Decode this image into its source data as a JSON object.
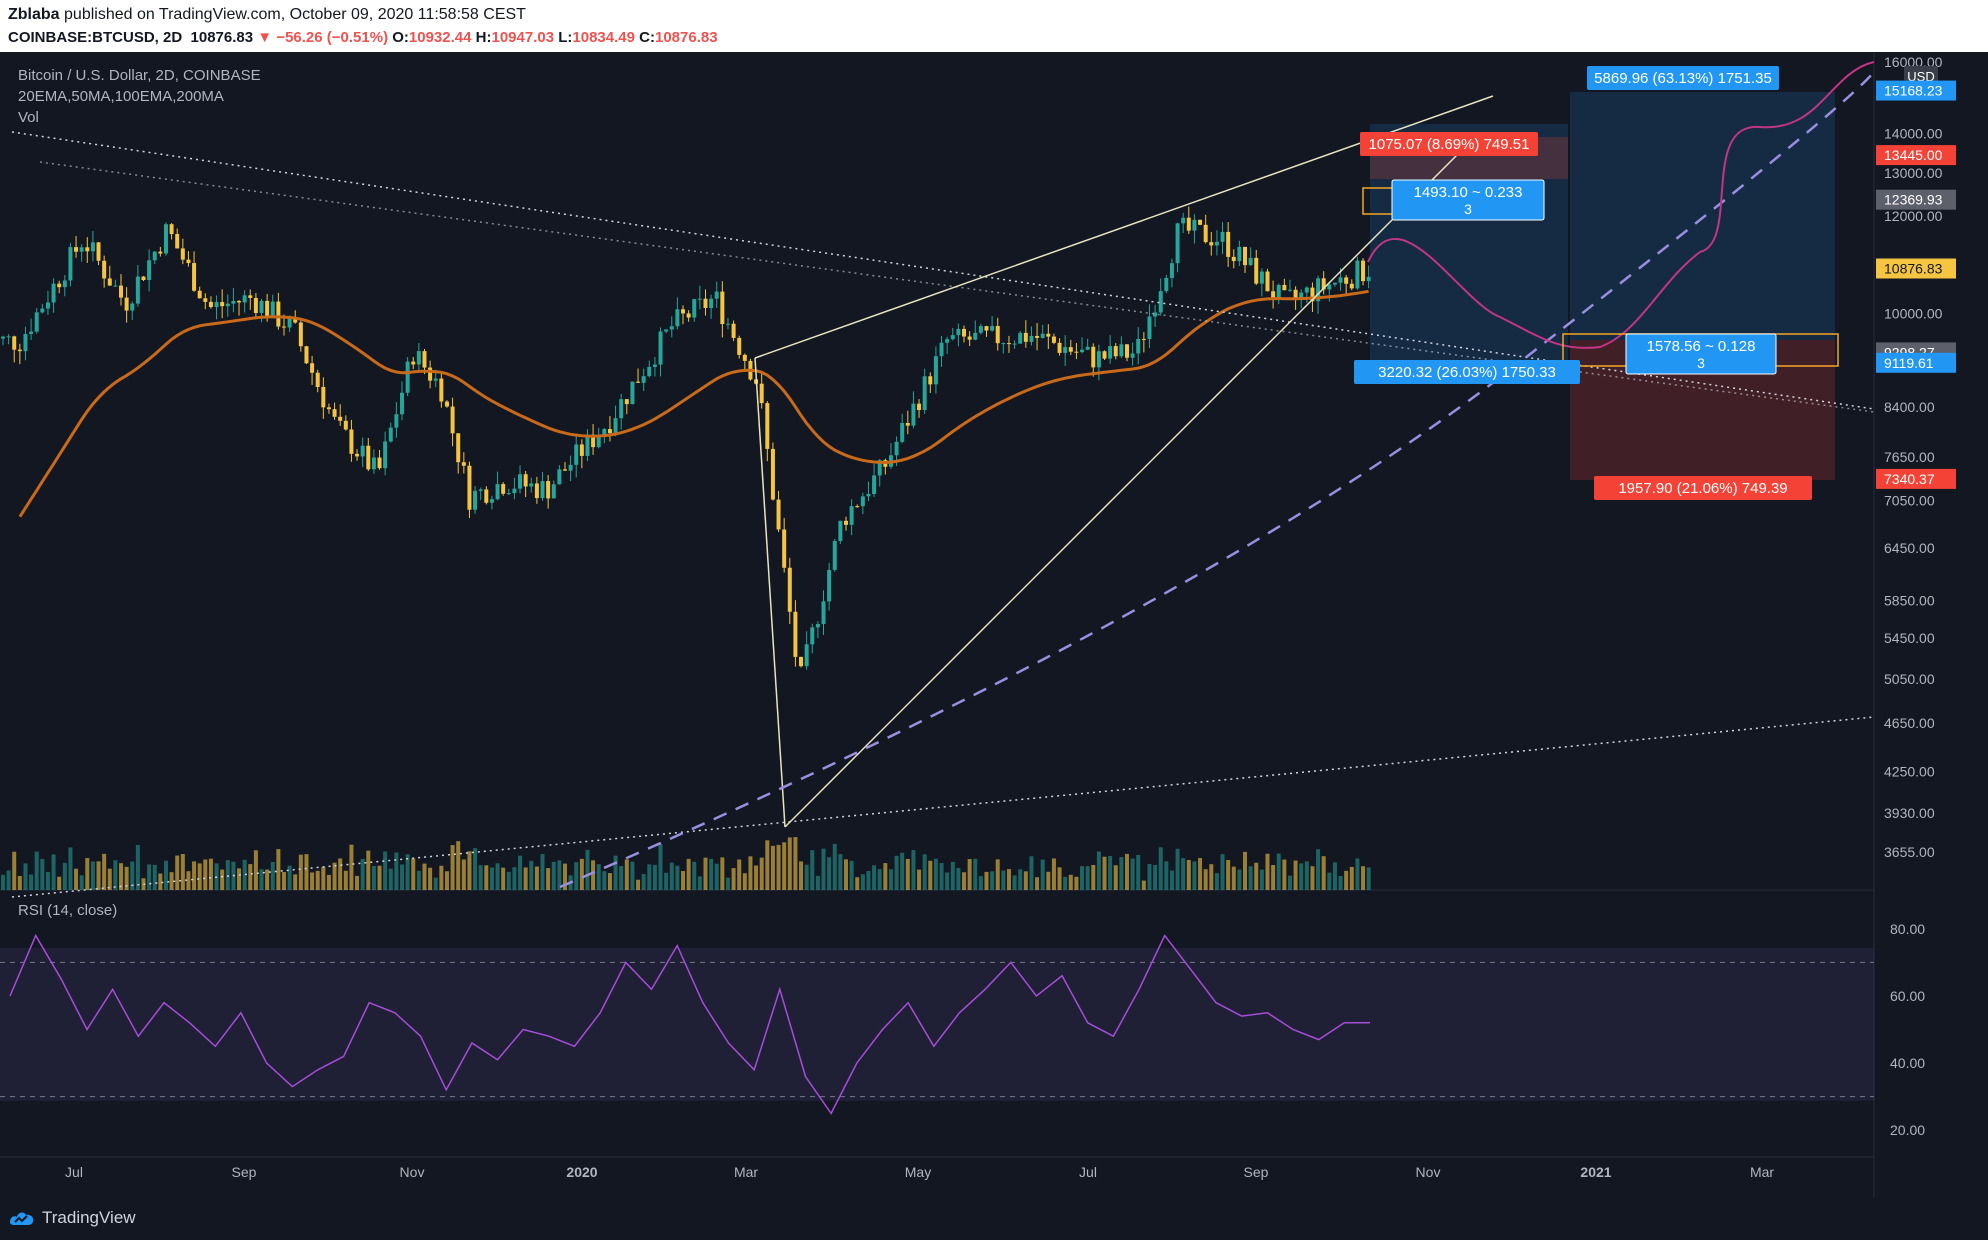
{
  "header": {
    "publisher": "Zblaba",
    "published_text": "published on TradingView.com, October 09, 2020 11:58:58 CEST",
    "symbol": "COINBASE:BTCUSD, 2D",
    "last": "10876.83",
    "change": "−56.26 (−0.51%)",
    "o_label": "O:",
    "o": "10932.44",
    "h_label": "H:",
    "h": "10947.03",
    "l_label": "L:",
    "l": "10834.49",
    "c_label": "C:",
    "c": "10876.83"
  },
  "legend": {
    "title": "Bitcoin / U.S. Dollar, 2D, COINBASE",
    "indicators": "20EMA,50MA,100EMA,200MA",
    "vol": "Vol",
    "rsi": "RSI (14, close)"
  },
  "footer": {
    "brand": "TradingView"
  },
  "colors": {
    "background": "#131722",
    "up_candle": "#26a69a",
    "down_candle": "#f5c542",
    "ema100": "#c96a1a",
    "rsi": "#a64dd9",
    "projection": "#c13584",
    "currency_chip": "#3a3e4a"
  },
  "chart_data": [
    {
      "type": "candlestick",
      "currency": "USD",
      "yscale": "log",
      "ylim": [
        3500,
        16000
      ],
      "price_ticks": [
        "16000.00",
        "14000.00",
        "13000.00",
        "12000.00",
        "10000.00",
        "8400.00",
        "7650.00",
        "7050.00",
        "6450.00",
        "5850.00",
        "5450.00",
        "5050.00",
        "4650.00",
        "4250.00",
        "3930.00",
        "3655.00"
      ],
      "x_ticks": [
        "Jul",
        "Sep",
        "Nov",
        "2020",
        "Mar",
        "May",
        "Jul",
        "Sep",
        "Nov",
        "2021",
        "Mar"
      ],
      "price_badges": [
        {
          "value": "15168.23",
          "color": "#2196f3"
        },
        {
          "value": "13445.00",
          "color": "#f44336"
        },
        {
          "value": "12369.93",
          "color": "#5d606b"
        },
        {
          "value": "10876.83",
          "color": "#f5c542"
        },
        {
          "value": "9298.27",
          "color": "#5d606b"
        },
        {
          "value": "9119.61",
          "color": "#2196f3"
        },
        {
          "value": "7340.37",
          "color": "#f44336"
        }
      ],
      "annotations": [
        {
          "text": "1075.07 (8.69%) 749.51",
          "color": "#f44336"
        },
        {
          "text": "5869.96 (63.13%) 1751.35",
          "color": "#2196f3"
        },
        {
          "text": "3220.32 (26.03%) 1750.33",
          "color": "#2196f3"
        },
        {
          "text": "1957.90 (21.06%) 749.39",
          "color": "#f44336"
        },
        {
          "text": "1493.10 ~ 0.233",
          "sub": "3",
          "color": "#2196f3"
        },
        {
          "text": "1578.56 ~ 0.128",
          "sub": "3",
          "color": "#2196f3"
        }
      ],
      "series": [
        {
          "close_path": [
            {
              "t": "Jun 2019",
              "p": 9500
            },
            {
              "t": "Jul 2019",
              "p": 11500
            },
            {
              "t": "Jul 2019",
              "p": 10200
            },
            {
              "t": "Aug 2019",
              "p": 11700
            },
            {
              "t": "Aug 2019",
              "p": 10100
            },
            {
              "t": "Sep 2019",
              "p": 10300
            },
            {
              "t": "Sep 2019",
              "p": 9700
            },
            {
              "t": "Oct 2019",
              "p": 8100
            },
            {
              "t": "Oct 2019",
              "p": 7400
            },
            {
              "t": "Nov 2019",
              "p": 9300
            },
            {
              "t": "Nov 2019",
              "p": 8700
            },
            {
              "t": "Nov 2019",
              "p": 7100
            },
            {
              "t": "Dec 2019",
              "p": 7300
            },
            {
              "t": "Dec 2019",
              "p": 7200
            },
            {
              "t": "Jan 2020",
              "p": 8200
            },
            {
              "t": "Feb 2020",
              "p": 9800
            },
            {
              "t": "Feb 2020",
              "p": 10300
            },
            {
              "t": "Mar 2020",
              "p": 8800
            },
            {
              "t": "Mar 2020",
              "p": 5000
            },
            {
              "t": "Apr 2020",
              "p": 6800
            },
            {
              "t": "Apr 2020",
              "p": 7500
            },
            {
              "t": "May 2020",
              "p": 9500
            },
            {
              "t": "Jun 2020",
              "p": 9600
            },
            {
              "t": "Jul 2020",
              "p": 9200
            },
            {
              "t": "Jul 2020",
              "p": 9300
            },
            {
              "t": "Aug 2020",
              "p": 11700
            },
            {
              "t": "Aug 2020",
              "p": 11500
            },
            {
              "t": "Sep 2020",
              "p": 10200
            },
            {
              "t": "Oct 2020",
              "p": 10877
            }
          ]
        }
      ]
    },
    {
      "type": "line",
      "title": "RSI (14, close)",
      "ylim": [
        15,
        88
      ],
      "y_ticks": [
        "80.00",
        "60.00",
        "40.00",
        "20.00"
      ],
      "bands": [
        30,
        70
      ],
      "values": [
        60,
        78,
        65,
        50,
        62,
        48,
        58,
        52,
        45,
        55,
        40,
        33,
        38,
        42,
        58,
        55,
        48,
        32,
        46,
        41,
        50,
        48,
        45,
        55,
        70,
        62,
        75,
        58,
        46,
        38,
        62,
        36,
        25,
        40,
        50,
        58,
        45,
        55,
        62,
        70,
        60,
        66,
        52,
        48,
        62,
        78,
        68,
        58,
        54,
        55,
        50,
        47,
        52,
        52
      ]
    }
  ]
}
